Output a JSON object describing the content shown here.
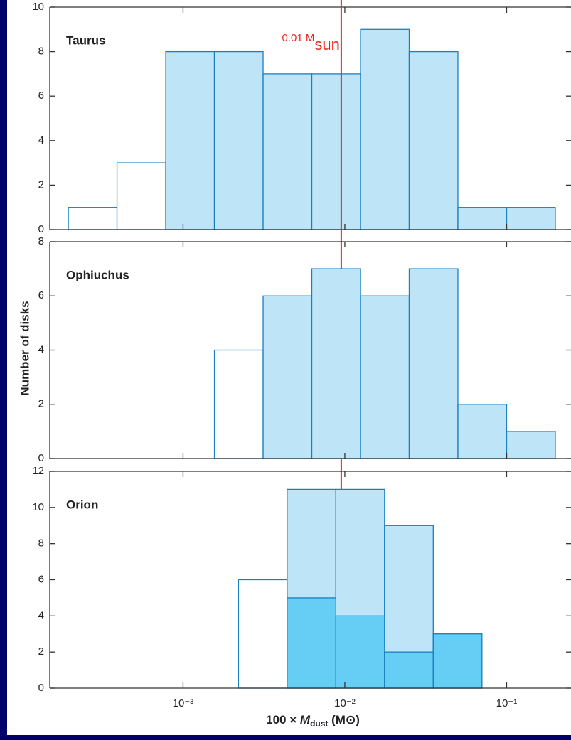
{
  "chart_data": [
    {
      "type": "histogram",
      "title": "Taurus",
      "xscale": "log",
      "xlim": [
        0.00015,
        0.25
      ],
      "ylim": [
        0,
        10
      ],
      "yticks": [
        0,
        2,
        4,
        6,
        8,
        10
      ],
      "bins": [
        0.0001953125,
        0.000390625,
        0.00078125,
        0.0015625,
        0.003125,
        0.00625,
        0.0125,
        0.025,
        0.05,
        0.1,
        0.2
      ],
      "series": [
        {
          "colors": [
            "#ffffff",
            "#ffffff",
            "#bde4f7",
            "#bde4f7",
            "#bde4f7",
            "#bde4f7",
            "#bde4f7",
            "#bde4f7",
            "#bde4f7",
            "#bde4f7"
          ],
          "values": [
            1,
            3,
            8,
            8,
            7,
            7,
            9,
            8,
            1,
            1
          ]
        }
      ],
      "annotation": {
        "text": "0.01 M",
        "subscript": "sun",
        "x": 0.0095,
        "color": "#e8271c"
      }
    },
    {
      "type": "histogram",
      "title": "Ophiuchus",
      "xscale": "log",
      "ylabel": "Number of disks",
      "xlim": [
        0.00015,
        0.25
      ],
      "ylim": [
        0,
        8
      ],
      "yticks": [
        0,
        2,
        4,
        6,
        8
      ],
      "bins": [
        0.0015625,
        0.003125,
        0.00625,
        0.0125,
        0.025,
        0.05,
        0.1,
        0.2
      ],
      "series": [
        {
          "colors": [
            "#ffffff",
            "#bde4f7",
            "#bde4f7",
            "#bde4f7",
            "#bde4f7",
            "#bde4f7",
            "#bde4f7"
          ],
          "values": [
            4,
            6,
            7,
            6,
            7,
            2,
            1
          ]
        }
      ]
    },
    {
      "type": "histogram",
      "title": "Orion",
      "xscale": "log",
      "xlabel": {
        "main": "100 × ",
        "var": "M",
        "sub": "dust",
        "unit": " (M⊙)"
      },
      "xlim": [
        0.00015,
        0.25
      ],
      "ylim": [
        0,
        12
      ],
      "yticks": [
        0,
        2,
        4,
        6,
        8,
        10,
        12
      ],
      "xticks": [
        {
          "value": 0.001,
          "label": "10⁻³"
        },
        {
          "value": 0.01,
          "label": "10⁻²"
        },
        {
          "value": 0.1,
          "label": "10⁻¹"
        }
      ],
      "bins": [
        0.0022,
        0.0044,
        0.0088,
        0.0176,
        0.0352,
        0.0704
      ],
      "series": [
        {
          "colors": [
            "#ffffff",
            "#bde4f7",
            "#bde4f7",
            "#bde4f7",
            "#bde4f7"
          ],
          "values": [
            6,
            11,
            11,
            9,
            3
          ]
        },
        {
          "colors": [
            "#66cdf4",
            "#66cdf4",
            "#66cdf4",
            "#66cdf4",
            "#66cdf4"
          ],
          "values": [
            0,
            5,
            4,
            2,
            3
          ]
        }
      ]
    }
  ]
}
